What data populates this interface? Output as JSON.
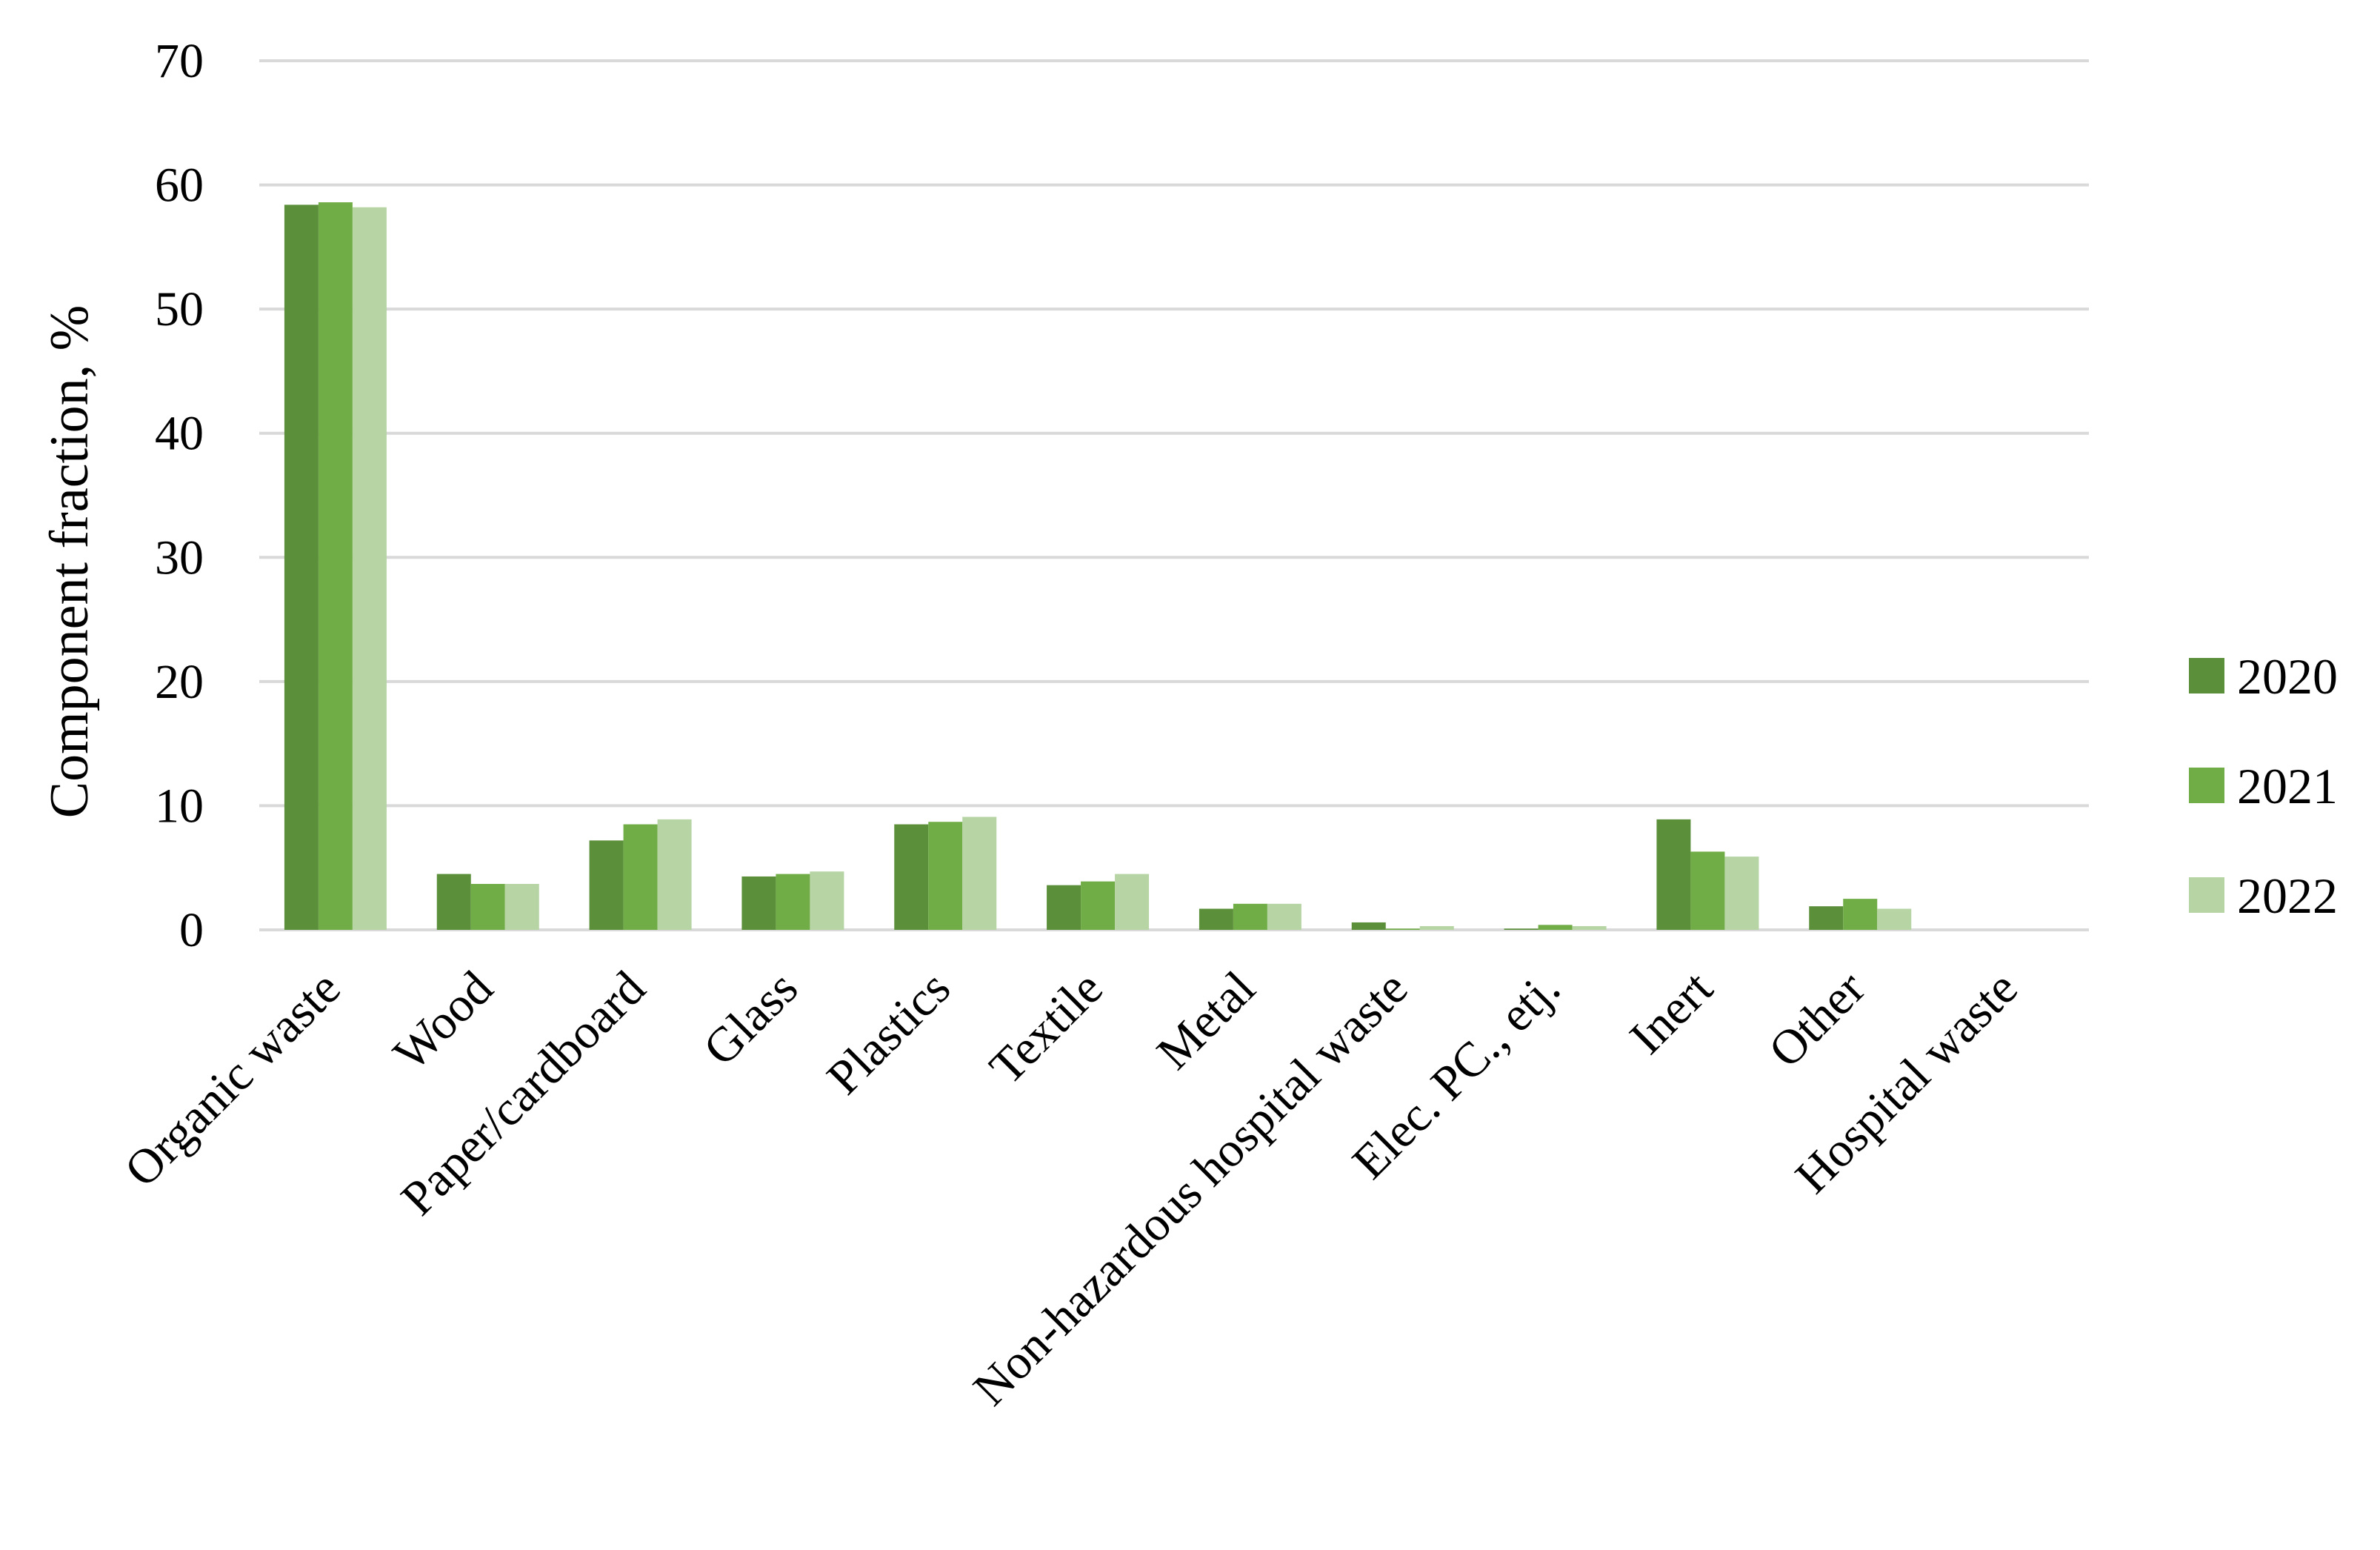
{
  "chart_data": {
    "type": "bar",
    "ylabel": "Component fraction, %",
    "ylim": [
      0,
      70
    ],
    "yticks": [
      0,
      10,
      20,
      30,
      40,
      50,
      60,
      70
    ],
    "grid": true,
    "legend_position": "right",
    "categories": [
      "Organic waste",
      "Wood",
      "Paper/cardboard",
      "Glass",
      "Plastics",
      "Textile",
      "Metal",
      "Non-hazardous hospital waste",
      "Elec. PC., etj.",
      "Inert",
      "Other",
      "Hospital waste"
    ],
    "series": [
      {
        "name": "2020",
        "color": "#5b8f3a",
        "values": [
          58.4,
          4.5,
          7.2,
          4.3,
          8.5,
          3.6,
          1.7,
          0.6,
          0.1,
          8.9,
          1.9,
          0.0
        ]
      },
      {
        "name": "2021",
        "color": "#71ad47",
        "values": [
          58.6,
          3.7,
          8.5,
          4.5,
          8.7,
          3.9,
          2.1,
          0.1,
          0.4,
          6.3,
          2.5,
          0.0
        ]
      },
      {
        "name": "2022",
        "color": "#b6d4a4",
        "values": [
          58.2,
          3.7,
          8.9,
          4.7,
          9.1,
          4.5,
          2.1,
          0.3,
          0.3,
          5.9,
          1.7,
          0.0
        ]
      }
    ]
  }
}
